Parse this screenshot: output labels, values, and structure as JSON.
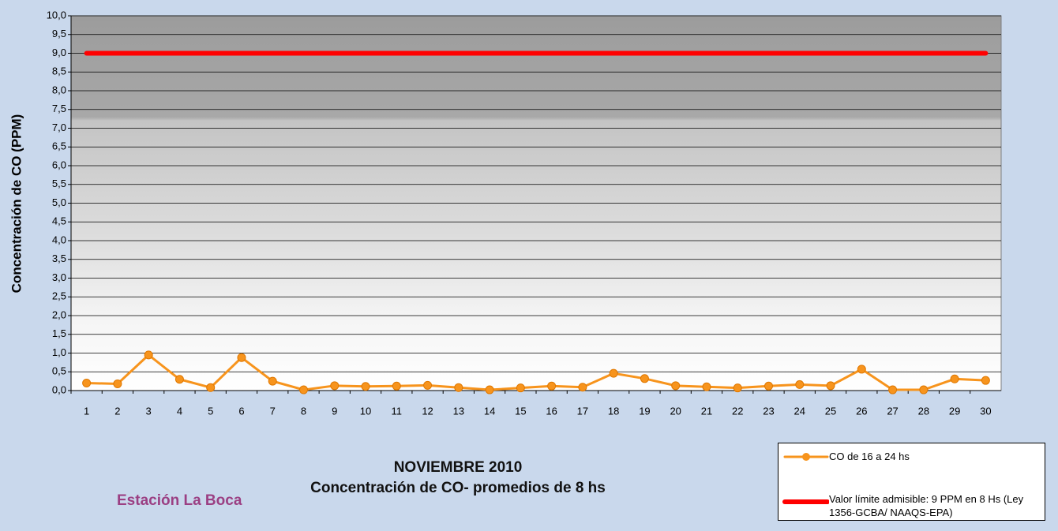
{
  "chart_data": {
    "type": "line",
    "title": "NOVIEMBRE 2010",
    "subtitle": "Concentración de CO- promedios de 8 hs",
    "station": "Estación La Boca",
    "y_label": "Concentración de CO (PPM)",
    "categories": [
      "1",
      "2",
      "3",
      "4",
      "5",
      "6",
      "7",
      "8",
      "9",
      "10",
      "11",
      "12",
      "13",
      "14",
      "15",
      "16",
      "17",
      "18",
      "19",
      "20",
      "21",
      "22",
      "23",
      "24",
      "25",
      "26",
      "27",
      "28",
      "29",
      "30"
    ],
    "series": [
      {
        "name": "CO de 16 a 24 hs",
        "color": "#f7941d",
        "marker": true,
        "values": [
          0.2,
          0.18,
          0.95,
          0.3,
          0.08,
          0.88,
          0.25,
          0.02,
          0.13,
          0.11,
          0.12,
          0.14,
          0.08,
          0.02,
          0.07,
          0.12,
          0.09,
          0.46,
          0.32,
          0.13,
          0.1,
          0.07,
          0.12,
          0.16,
          0.13,
          0.57,
          0.02,
          0.02,
          0.31,
          0.27
        ]
      },
      {
        "name": "Valor límite admisible: 9 PPM en 8 Hs (Ley 1356-GCBA/ NAAQS-EPA)",
        "color": "#ff0000",
        "marker": false,
        "values": [
          9,
          9,
          9,
          9,
          9,
          9,
          9,
          9,
          9,
          9,
          9,
          9,
          9,
          9,
          9,
          9,
          9,
          9,
          9,
          9,
          9,
          9,
          9,
          9,
          9,
          9,
          9,
          9,
          9,
          9
        ]
      }
    ],
    "ylim": [
      0,
      10
    ],
    "yticks": [
      {
        "value": 0,
        "label": "0,0"
      },
      {
        "value": 0.5,
        "label": "0,5"
      },
      {
        "value": 1,
        "label": "1,0"
      },
      {
        "value": 1.5,
        "label": "1,5"
      },
      {
        "value": 2,
        "label": "2,0"
      },
      {
        "value": 2.5,
        "label": "2,5"
      },
      {
        "value": 3,
        "label": "3,0"
      },
      {
        "value": 3.5,
        "label": "3,5"
      },
      {
        "value": 4,
        "label": "4,0"
      },
      {
        "value": 4.5,
        "label": "4,5"
      },
      {
        "value": 5,
        "label": "5,0"
      },
      {
        "value": 5.5,
        "label": "5,5"
      },
      {
        "value": 6,
        "label": "6,0"
      },
      {
        "value": 6.5,
        "label": "6,5"
      },
      {
        "value": 7,
        "label": "7,0"
      },
      {
        "value": 7.5,
        "label": "7,5"
      },
      {
        "value": 8,
        "label": "8,0"
      },
      {
        "value": 8.5,
        "label": "8,5"
      },
      {
        "value": 9,
        "label": "9,0"
      },
      {
        "value": 9.5,
        "label": "9,5"
      },
      {
        "value": 10,
        "label": "10,0"
      }
    ],
    "grid": true
  }
}
